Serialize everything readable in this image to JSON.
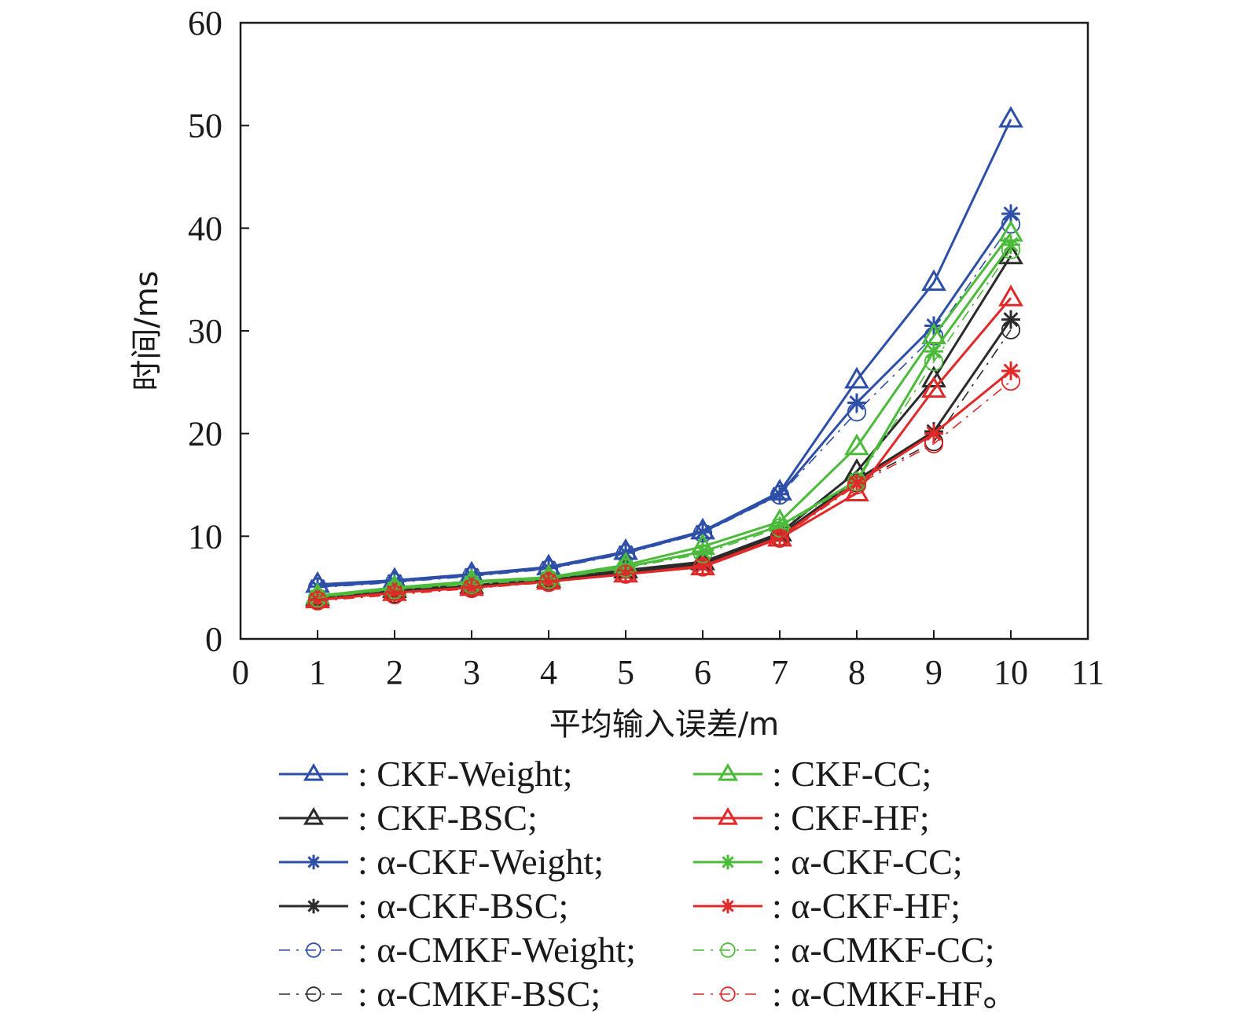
{
  "chart_data": {
    "type": "line",
    "title": "",
    "xlabel": "平均输入误差/m",
    "ylabel": "时间/ms",
    "xlim": [
      0,
      11
    ],
    "ylim": [
      0,
      60
    ],
    "xticks": [
      "0",
      "1",
      "2",
      "3",
      "4",
      "5",
      "6",
      "7",
      "8",
      "9",
      "10",
      "11"
    ],
    "yticks": [
      "0",
      "10",
      "20",
      "30",
      "40",
      "50",
      "60"
    ],
    "grid": false,
    "legend_position": "bottom",
    "x": [
      1,
      2,
      3,
      4,
      5,
      6,
      7,
      8,
      9,
      10
    ],
    "series": [
      {
        "name": "CKF-Weight",
        "label": ": CKF-Weight;",
        "color": "#2e4fa8",
        "marker": "triangle",
        "dash": "solid",
        "values": [
          5.3,
          5.7,
          6.3,
          7.0,
          8.5,
          10.5,
          14.3,
          25.2,
          34.7,
          50.6
        ]
      },
      {
        "name": "CKF-BSC",
        "label": ": CKF-BSC;",
        "color": "#2b2b2b",
        "marker": "triangle",
        "dash": "solid",
        "values": [
          4.0,
          4.8,
          5.2,
          5.8,
          6.7,
          7.5,
          10.3,
          16.3,
          25.3,
          37.3
        ]
      },
      {
        "name": "α-CKF-Weight",
        "label": ": α-CKF-Weight;",
        "color": "#2e4fa8",
        "marker": "star",
        "dash": "solid",
        "values": [
          5.1,
          5.6,
          6.2,
          6.9,
          8.4,
          10.4,
          14.1,
          23.0,
          30.5,
          41.4
        ]
      },
      {
        "name": "α-CKF-BSC",
        "label": ": α-CKF-BSC;",
        "color": "#2b2b2b",
        "marker": "star",
        "dash": "solid",
        "values": [
          3.9,
          4.6,
          5.1,
          5.7,
          6.5,
          7.3,
          10.1,
          15.5,
          20.2,
          31.1
        ]
      },
      {
        "name": "α-CMKF-Weight",
        "label": ": α-CMKF-Weight;",
        "color": "#2e4fa8",
        "marker": "circle",
        "dash": "dashdot",
        "values": [
          5.0,
          5.5,
          6.1,
          6.8,
          8.3,
          10.3,
          14.0,
          22.1,
          29.5,
          40.4
        ]
      },
      {
        "name": "α-CMKF-BSC",
        "label": ": α-CMKF-BSC;",
        "color": "#2b2b2b",
        "marker": "circle",
        "dash": "dashdot",
        "values": [
          3.8,
          4.4,
          5.0,
          5.6,
          6.4,
          7.1,
          10.0,
          15.2,
          19.2,
          30.1
        ]
      },
      {
        "name": "CKF-CC",
        "label": ": CKF-CC;",
        "color": "#4cba3a",
        "marker": "triangle",
        "dash": "solid",
        "values": [
          4.2,
          5.0,
          5.6,
          6.0,
          7.2,
          9.0,
          11.4,
          18.7,
          29.5,
          39.5
        ]
      },
      {
        "name": "CKF-HF",
        "label": ": CKF-HF;",
        "color": "#e02a2a",
        "marker": "triangle",
        "dash": "solid",
        "values": [
          3.8,
          4.5,
          5.0,
          5.6,
          6.3,
          7.0,
          9.8,
          14.2,
          24.3,
          33.2
        ]
      },
      {
        "name": "α-CKF-CC",
        "label": ": α-CKF-CC;",
        "color": "#4cba3a",
        "marker": "star",
        "dash": "solid",
        "values": [
          4.1,
          4.9,
          5.5,
          5.9,
          7.0,
          8.5,
          11.0,
          15.4,
          28.0,
          38.4
        ]
      },
      {
        "name": "α-CKF-HF",
        "label": ": α-CKF-HF;",
        "color": "#e02a2a",
        "marker": "star",
        "dash": "solid",
        "values": [
          3.8,
          4.5,
          5.0,
          5.6,
          6.3,
          7.1,
          9.9,
          15.2,
          20.0,
          26.1
        ]
      },
      {
        "name": "α-CMKF-CC",
        "label": ": α-CMKF-CC;",
        "color": "#4cba3a",
        "marker": "circle",
        "dash": "dashdot",
        "values": [
          4.0,
          4.8,
          5.3,
          5.8,
          6.9,
          8.3,
          10.8,
          15.3,
          27.0,
          37.9
        ]
      },
      {
        "name": "α-CMKF-HF",
        "label": ": α-CMKF-HF。",
        "color": "#e02a2a",
        "marker": "circle",
        "dash": "dashdot",
        "values": [
          3.7,
          4.3,
          4.9,
          5.5,
          6.3,
          7.0,
          9.8,
          15.0,
          19.0,
          25.1
        ]
      }
    ],
    "legend_order": [
      [
        "CKF-Weight",
        "CKF-CC"
      ],
      [
        "CKF-BSC",
        "CKF-HF"
      ],
      [
        "α-CKF-Weight",
        "α-CKF-CC"
      ],
      [
        "α-CKF-BSC",
        "α-CKF-HF"
      ],
      [
        "α-CMKF-Weight",
        "α-CMKF-CC"
      ],
      [
        "α-CMKF-BSC",
        "α-CMKF-HF"
      ]
    ]
  }
}
